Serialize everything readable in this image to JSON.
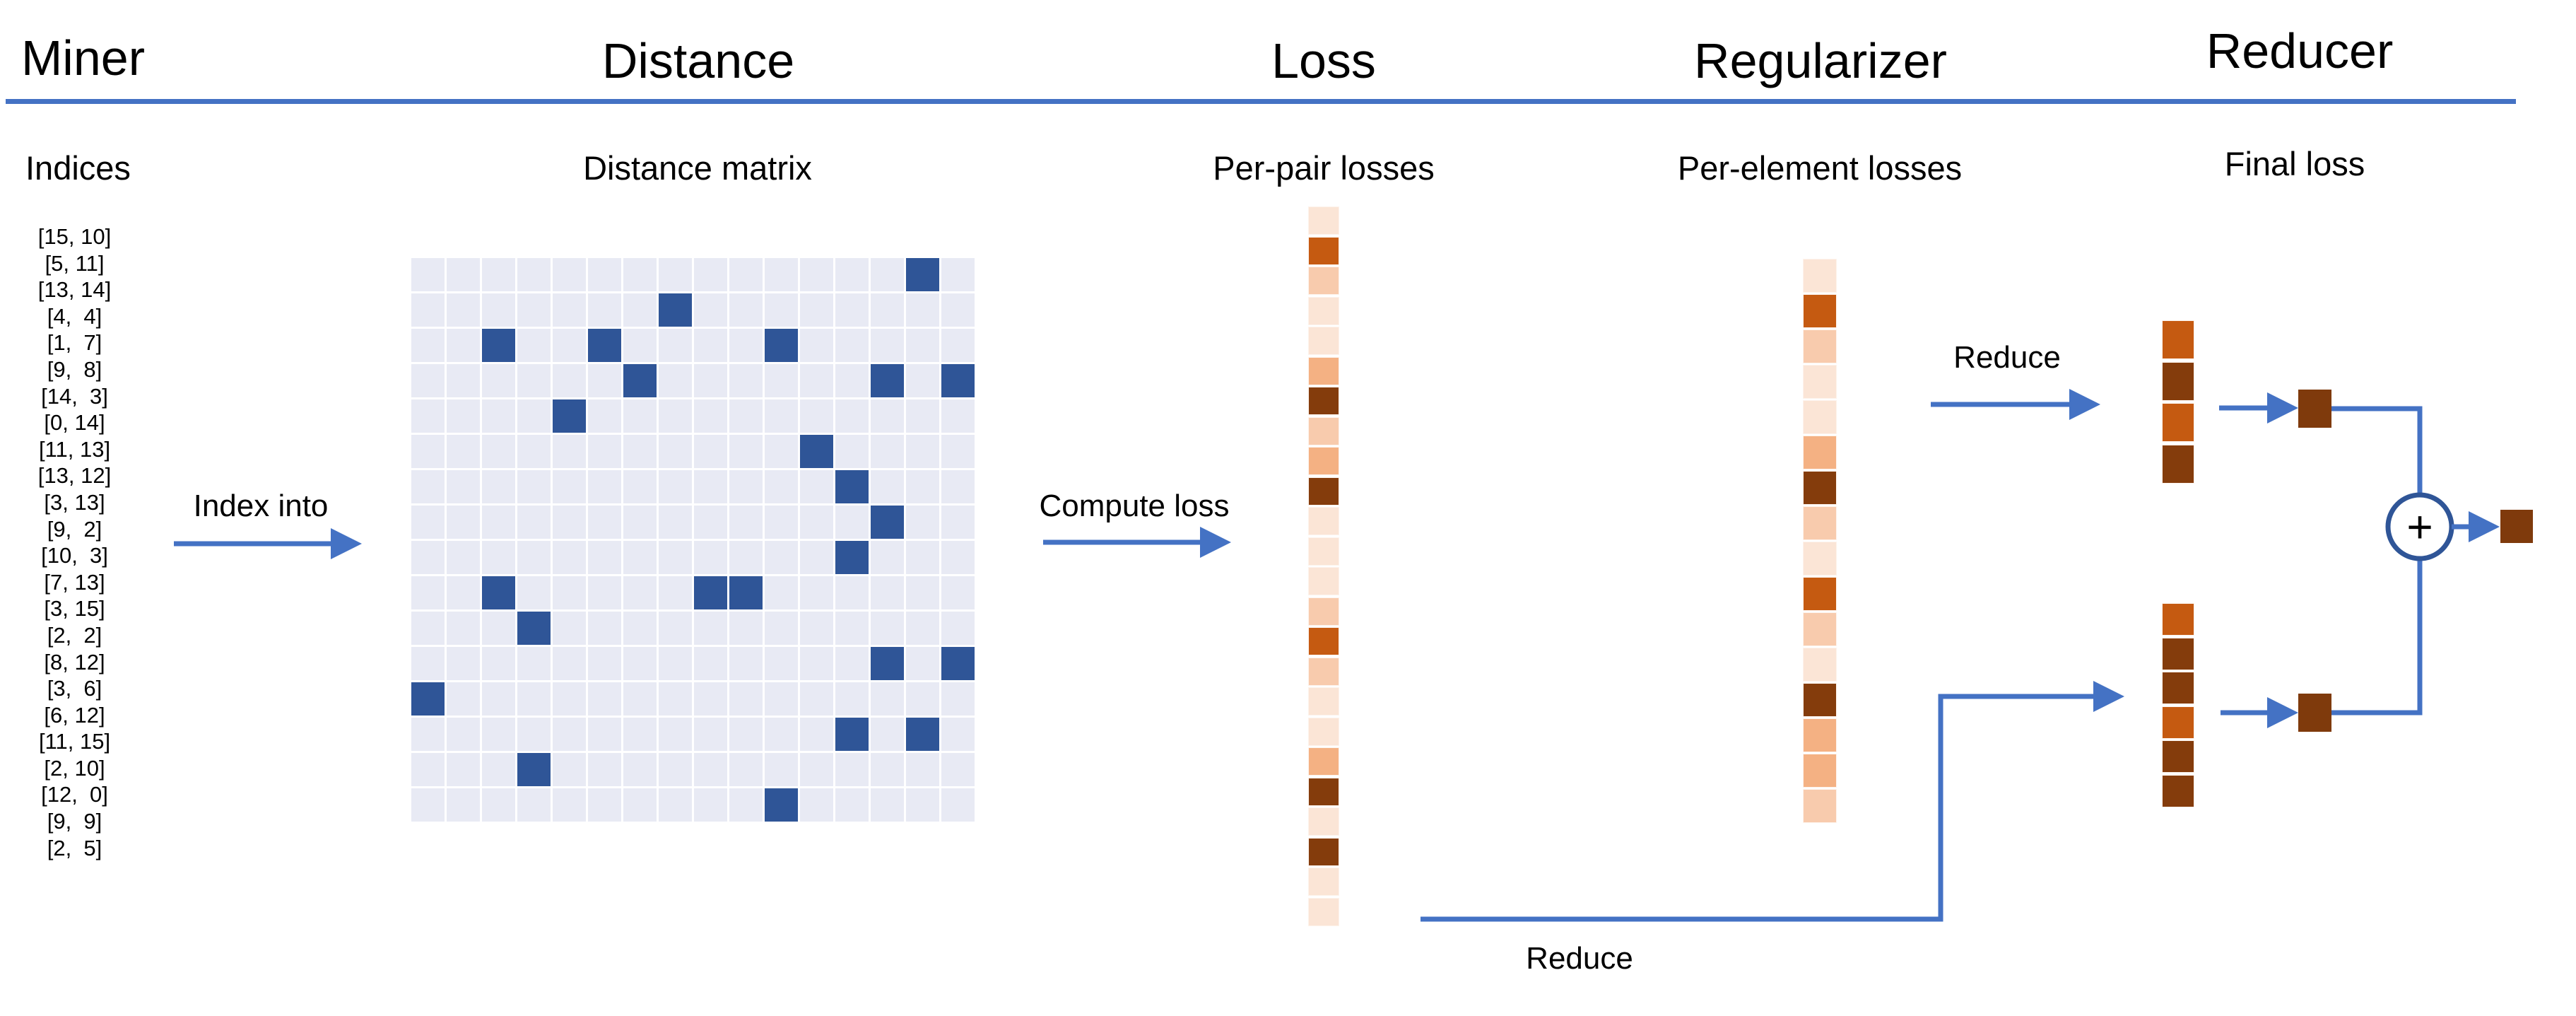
{
  "columns": {
    "miner": {
      "title": "Miner",
      "sublabel": "Indices"
    },
    "distance": {
      "title": "Distance",
      "sublabel": "Distance matrix"
    },
    "loss": {
      "title": "Loss",
      "sublabel": "Per-pair losses"
    },
    "regularizer": {
      "title": "Regularizer",
      "sublabel": "Per-element losses"
    },
    "reducer": {
      "title": "Reducer",
      "sublabel": "Final loss"
    }
  },
  "labels": {
    "index_into": "Index into",
    "compute_loss": "Compute loss",
    "reduce_top": "Reduce",
    "reduce_bottom": "Reduce",
    "plus": "+"
  },
  "miner": {
    "pairs": [
      {
        "label": "[15, 10]",
        "row": 15,
        "col": 10
      },
      {
        "label": "[5, 11]",
        "row": 5,
        "col": 11
      },
      {
        "label": "[13, 14]",
        "row": 13,
        "col": 14
      },
      {
        "label": "[4,  4]",
        "row": 4,
        "col": 4
      },
      {
        "label": "[1,  7]",
        "row": 1,
        "col": 7
      },
      {
        "label": "[9,  8]",
        "row": 9,
        "col": 8
      },
      {
        "label": "[14,  3]",
        "row": 14,
        "col": 3
      },
      {
        "label": "[0, 14]",
        "row": 0,
        "col": 14
      },
      {
        "label": "[11, 13]",
        "row": 11,
        "col": 13
      },
      {
        "label": "[13, 12]",
        "row": 13,
        "col": 12
      },
      {
        "label": "[3, 13]",
        "row": 3,
        "col": 13
      },
      {
        "label": "[9,  2]",
        "row": 9,
        "col": 2
      },
      {
        "label": "[10,  3]",
        "row": 10,
        "col": 3
      },
      {
        "label": "[7, 13]",
        "row": 7,
        "col": 13
      },
      {
        "label": "[3, 15]",
        "row": 3,
        "col": 15
      },
      {
        "label": "[2,  2]",
        "row": 2,
        "col": 2
      },
      {
        "label": "[8, 12]",
        "row": 8,
        "col": 12
      },
      {
        "label": "[3,  6]",
        "row": 3,
        "col": 6
      },
      {
        "label": "[6, 12]",
        "row": 6,
        "col": 12
      },
      {
        "label": "[11, 15]",
        "row": 11,
        "col": 15
      },
      {
        "label": "[2, 10]",
        "row": 2,
        "col": 10
      },
      {
        "label": "[12,  0]",
        "row": 12,
        "col": 0
      },
      {
        "label": "[9,  9]",
        "row": 9,
        "col": 9
      },
      {
        "label": "[2,  5]",
        "row": 2,
        "col": 5
      }
    ]
  },
  "distance_matrix": {
    "rows": 16,
    "cols": 16
  },
  "loss_strip": {
    "cells": [
      "lightest",
      "strong",
      "light",
      "lightest",
      "lightest",
      "medium",
      "dark",
      "light",
      "medium",
      "dark",
      "lightest",
      "lightest",
      "lightest",
      "light",
      "strong",
      "light",
      "lightest",
      "lightest",
      "medium",
      "dark",
      "lightest",
      "dark",
      "lightest",
      "lightest"
    ]
  },
  "regularizer_strip": {
    "cells": [
      "lightest",
      "strong",
      "light",
      "lightest",
      "lightest",
      "medium",
      "dark",
      "light",
      "lightest",
      "strong",
      "light",
      "lightest",
      "dark",
      "medium",
      "medium",
      "light"
    ]
  },
  "reducer": {
    "top_strip": [
      "strong",
      "dark",
      "strong",
      "dark"
    ],
    "bottom_strip": [
      "strong",
      "dark",
      "dark",
      "strong",
      "dark",
      "dark"
    ]
  },
  "colors": {
    "accent_blue": "#4472c4",
    "matrix_light": "#e8eaf4",
    "matrix_dark": "#2f5597",
    "palette": {
      "lightest": "#fbe5d6",
      "light": "#f8cbad",
      "medium": "#f4b183",
      "strong": "#c55a11",
      "dark": "#843c0c"
    },
    "square_brown": "#7f3a0c"
  }
}
